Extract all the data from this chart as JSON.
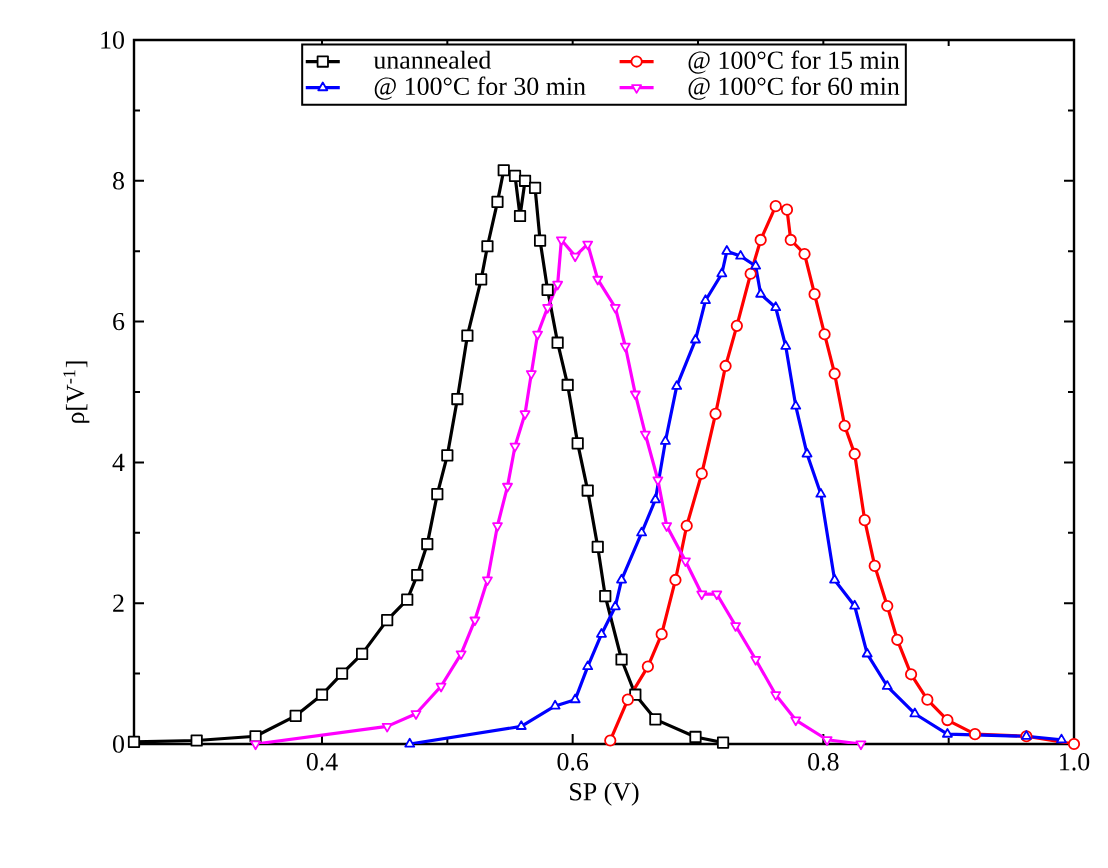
{
  "chart_data": {
    "type": "line",
    "xlabel": "SP (V)",
    "ylabel": "ρ[V$^{-1}$]",
    "xlim": [
      0.25,
      1.0
    ],
    "ylim": [
      0,
      10
    ],
    "xticks": [
      0.4,
      0.6,
      0.8,
      {
        "value": 1.0,
        "label": "1.0"
      }
    ],
    "yticks": [
      0,
      2,
      4,
      6,
      8,
      10
    ],
    "legend": "top",
    "grid": false,
    "line_style": "solid",
    "series": [
      {
        "name": "unannealed",
        "color": "#000000",
        "marker": "square",
        "x": [
          0.25,
          0.3,
          0.347,
          0.379,
          0.4,
          0.416,
          0.432,
          0.452,
          0.468,
          0.476,
          0.484,
          0.492,
          0.5,
          0.508,
          0.516,
          0.527,
          0.532,
          0.54,
          0.545,
          0.554,
          0.558,
          0.562,
          0.57,
          0.574,
          0.58,
          0.588,
          0.596,
          0.604,
          0.612,
          0.62,
          0.626,
          0.639,
          0.65,
          0.666,
          0.698,
          0.72
        ],
        "values": [
          0.03,
          0.05,
          0.11,
          0.4,
          0.7,
          1.0,
          1.28,
          1.76,
          2.05,
          2.4,
          2.84,
          3.55,
          4.1,
          4.9,
          5.8,
          6.6,
          7.07,
          7.7,
          8.15,
          8.07,
          7.5,
          8.0,
          7.9,
          7.15,
          6.45,
          5.7,
          5.1,
          4.27,
          3.6,
          2.8,
          2.1,
          1.2,
          0.7,
          0.35,
          0.1,
          0.02
        ]
      },
      {
        "name": "@ 100°C for 15 min",
        "color": "#ff0000",
        "marker": "circle",
        "x": [
          0.63,
          0.644,
          0.66,
          0.671,
          0.682,
          0.691,
          0.703,
          0.714,
          0.722,
          0.731,
          0.742,
          0.75,
          0.762,
          0.771,
          0.774,
          0.785,
          0.793,
          0.801,
          0.809,
          0.817,
          0.825,
          0.833,
          0.841,
          0.851,
          0.859,
          0.87,
          0.883,
          0.899,
          0.921,
          0.962,
          1.0
        ],
        "values": [
          0.05,
          0.63,
          1.1,
          1.56,
          2.33,
          3.1,
          3.84,
          4.69,
          5.37,
          5.94,
          6.68,
          7.16,
          7.64,
          7.59,
          7.16,
          6.96,
          6.39,
          5.82,
          5.26,
          4.52,
          4.12,
          3.18,
          2.53,
          1.96,
          1.48,
          0.99,
          0.63,
          0.34,
          0.14,
          0.11,
          0.0
        ]
      },
      {
        "name": "@ 100°C for 30 min",
        "color": "#0000ff",
        "marker": "triangle",
        "x": [
          0.47,
          0.559,
          0.586,
          0.602,
          0.612,
          0.623,
          0.634,
          0.639,
          0.655,
          0.666,
          0.674,
          0.683,
          0.698,
          0.706,
          0.719,
          0.723,
          0.734,
          0.746,
          0.75,
          0.762,
          0.77,
          0.778,
          0.787,
          0.798,
          0.809,
          0.825,
          0.835,
          0.851,
          0.873,
          0.899,
          0.962,
          0.99
        ],
        "values": [
          0.0,
          0.25,
          0.54,
          0.63,
          1.1,
          1.56,
          1.95,
          2.33,
          3.0,
          3.47,
          4.3,
          5.08,
          5.74,
          6.3,
          6.68,
          7.0,
          6.93,
          6.79,
          6.39,
          6.2,
          5.65,
          4.8,
          4.12,
          3.55,
          2.33,
          1.96,
          1.28,
          0.82,
          0.43,
          0.14,
          0.11,
          0.06
        ]
      },
      {
        "name": "@ 100°C for 60 min",
        "color": "#ff00ff",
        "marker": "triangle_down",
        "x": [
          0.347,
          0.452,
          0.475,
          0.495,
          0.511,
          0.522,
          0.532,
          0.54,
          0.548,
          0.554,
          0.562,
          0.567,
          0.572,
          0.58,
          0.588,
          0.591,
          0.602,
          0.612,
          0.62,
          0.634,
          0.642,
          0.65,
          0.658,
          0.668,
          0.675,
          0.69,
          0.703,
          0.715,
          0.73,
          0.746,
          0.762,
          0.778,
          0.803,
          0.83
        ],
        "values": [
          0.0,
          0.25,
          0.43,
          0.82,
          1.28,
          1.76,
          2.33,
          3.1,
          3.66,
          4.23,
          4.69,
          5.26,
          5.82,
          6.2,
          6.53,
          7.16,
          6.93,
          7.1,
          6.6,
          6.2,
          5.65,
          4.97,
          4.4,
          3.75,
          3.1,
          2.6,
          2.13,
          2.13,
          1.68,
          1.2,
          0.7,
          0.34,
          0.06,
          0.0
        ]
      }
    ]
  }
}
